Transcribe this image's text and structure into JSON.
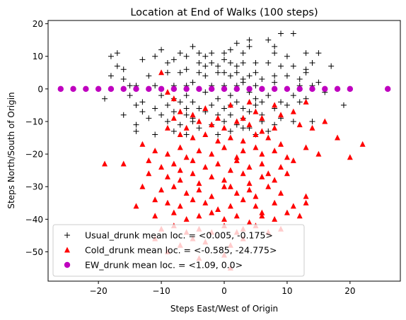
{
  "chart_data": {
    "type": "scatter",
    "title": "Location at End of Walks (100 steps)",
    "xlabel": "Steps East/West of Origin",
    "ylabel": "Steps North/South of Origin",
    "xlim": [
      -28,
      28
    ],
    "ylim": [
      -59,
      21
    ],
    "xticks": [
      -20,
      -10,
      0,
      10,
      20
    ],
    "yticks": [
      -50,
      -40,
      -30,
      -20,
      -10,
      0,
      10,
      20
    ],
    "grid": false,
    "legend_position": "lower-left",
    "series": [
      {
        "name": "Usual_drunk mean loc. = <0.005, -0.175>",
        "marker": "plus",
        "color": "#000000",
        "points": [
          [
            -18,
            10
          ],
          [
            -17,
            11
          ],
          [
            -17,
            7
          ],
          [
            -16,
            6
          ],
          [
            -13,
            9
          ],
          [
            -11,
            10
          ],
          [
            -10,
            12
          ],
          [
            -9,
            8
          ],
          [
            -8,
            9
          ],
          [
            -7,
            11
          ],
          [
            -6,
            10
          ],
          [
            -5,
            13
          ],
          [
            -4,
            11
          ],
          [
            -3,
            10
          ],
          [
            -2,
            11
          ],
          [
            0,
            11
          ],
          [
            1,
            12
          ],
          [
            2,
            14
          ],
          [
            3,
            11
          ],
          [
            4,
            13
          ],
          [
            4,
            15
          ],
          [
            7,
            15
          ],
          [
            8,
            13
          ],
          [
            9,
            17
          ],
          [
            11,
            17
          ],
          [
            8,
            11
          ],
          [
            10,
            10
          ],
          [
            13,
            11
          ],
          [
            15,
            11
          ],
          [
            17,
            7
          ],
          [
            -4,
            8
          ],
          [
            -3,
            7
          ],
          [
            -2,
            8
          ],
          [
            -1,
            7
          ],
          [
            0,
            9
          ],
          [
            1,
            8
          ],
          [
            2,
            7
          ],
          [
            3,
            8
          ],
          [
            5,
            8
          ],
          [
            7,
            8
          ],
          [
            9,
            7
          ],
          [
            11,
            7
          ],
          [
            13,
            6
          ],
          [
            14,
            8
          ],
          [
            -18,
            4
          ],
          [
            -16,
            3
          ],
          [
            -12,
            4
          ],
          [
            -9,
            5
          ],
          [
            -7,
            5
          ],
          [
            -6,
            6
          ],
          [
            -4,
            5
          ],
          [
            -3,
            4
          ],
          [
            -1,
            5
          ],
          [
            0,
            5
          ],
          [
            1,
            4
          ],
          [
            2,
            5
          ],
          [
            3,
            3
          ],
          [
            4,
            4
          ],
          [
            5,
            5
          ],
          [
            6,
            3
          ],
          [
            8,
            4
          ],
          [
            10,
            4
          ],
          [
            12,
            3
          ],
          [
            13,
            5
          ],
          [
            15,
            2
          ],
          [
            -15,
            1
          ],
          [
            -14,
            1
          ],
          [
            -11,
            1
          ],
          [
            -8,
            1
          ],
          [
            -6,
            1
          ],
          [
            -5,
            2
          ],
          [
            -2,
            1
          ],
          [
            0,
            1
          ],
          [
            2,
            1
          ],
          [
            3,
            2
          ],
          [
            5,
            1
          ],
          [
            8,
            2
          ],
          [
            12,
            1
          ],
          [
            14,
            1
          ],
          [
            -19,
            -3
          ],
          [
            -15,
            -2
          ],
          [
            -13,
            -4
          ],
          [
            -10,
            -2
          ],
          [
            -8,
            -3
          ],
          [
            -6,
            -2
          ],
          [
            -5,
            -4
          ],
          [
            -3,
            -1
          ],
          [
            -1,
            -3
          ],
          [
            1,
            -2
          ],
          [
            2,
            -4
          ],
          [
            4,
            -1
          ],
          [
            5,
            -3
          ],
          [
            7,
            -2
          ],
          [
            9,
            -4
          ],
          [
            11,
            -2
          ],
          [
            13,
            -3
          ],
          [
            16,
            -1
          ],
          [
            19,
            -5
          ],
          [
            -14,
            -5
          ],
          [
            -11,
            -6
          ],
          [
            -9,
            -5
          ],
          [
            -7,
            -4
          ],
          [
            -6,
            -6
          ],
          [
            -4,
            -6
          ],
          [
            -2,
            -5
          ],
          [
            0,
            -6
          ],
          [
            1,
            -5
          ],
          [
            3,
            -6
          ],
          [
            5,
            -5
          ],
          [
            6,
            -4
          ],
          [
            8,
            -6
          ],
          [
            10,
            -5
          ],
          [
            12,
            -4
          ],
          [
            -16,
            -8
          ],
          [
            -13,
            -7
          ],
          [
            -10,
            -8
          ],
          [
            -8,
            -7
          ],
          [
            -6,
            -8
          ],
          [
            -5,
            -9
          ],
          [
            -3,
            -7
          ],
          [
            -1,
            -8
          ],
          [
            1,
            -8
          ],
          [
            3,
            -9
          ],
          [
            4,
            -7
          ],
          [
            6,
            -8
          ],
          [
            9,
            -9
          ],
          [
            -14,
            -11
          ],
          [
            -12,
            -9
          ],
          [
            -9,
            -10
          ],
          [
            -7,
            -11
          ],
          [
            -5,
            -10
          ],
          [
            -2,
            -11
          ],
          [
            0,
            -10
          ],
          [
            2,
            -11
          ],
          [
            4,
            -12
          ],
          [
            6,
            -10
          ],
          [
            8,
            -11
          ],
          [
            11,
            -10
          ],
          [
            14,
            -10
          ],
          [
            -14,
            -13
          ],
          [
            -11,
            -14
          ],
          [
            -8,
            -13
          ],
          [
            -6,
            -14
          ],
          [
            -4,
            -12
          ],
          [
            -1,
            -14
          ],
          [
            1,
            -13
          ],
          [
            3,
            -12
          ],
          [
            5,
            -14
          ],
          [
            7,
            -13
          ]
        ]
      },
      {
        "name": "Cold_drunk mean loc. = <-0.585, -24.775>",
        "marker": "triangle",
        "color": "#ff0000",
        "points": [
          [
            -10,
            5
          ],
          [
            -9,
            -1
          ],
          [
            -8,
            -3
          ],
          [
            -7,
            -7
          ],
          [
            -5,
            -8
          ],
          [
            -3,
            -6
          ],
          [
            -1,
            -9
          ],
          [
            1,
            -5
          ],
          [
            3,
            -9
          ],
          [
            4,
            -4
          ],
          [
            5,
            -7
          ],
          [
            6,
            -9
          ],
          [
            8,
            -5
          ],
          [
            9,
            -8
          ],
          [
            11,
            -7
          ],
          [
            13,
            -4
          ],
          [
            -8,
            -9
          ],
          [
            -6,
            -12
          ],
          [
            -4,
            -10
          ],
          [
            -2,
            -11
          ],
          [
            0,
            -12
          ],
          [
            2,
            -10
          ],
          [
            4,
            -11
          ],
          [
            6,
            -13
          ],
          [
            8,
            -12
          ],
          [
            12,
            -11
          ],
          [
            14,
            -12
          ],
          [
            16,
            -10
          ],
          [
            -9,
            -12
          ],
          [
            -7,
            -14
          ],
          [
            -5,
            -15
          ],
          [
            -3,
            -14
          ],
          [
            -1,
            -16
          ],
          [
            1,
            -15
          ],
          [
            3,
            -16
          ],
          [
            5,
            -14
          ],
          [
            7,
            -15
          ],
          [
            9,
            -17
          ],
          [
            18,
            -15
          ],
          [
            -13,
            -17
          ],
          [
            -11,
            -19
          ],
          [
            -9,
            -20
          ],
          [
            -7,
            -18
          ],
          [
            -6,
            -21
          ],
          [
            -4,
            -19
          ],
          [
            -2,
            -20
          ],
          [
            0,
            -18
          ],
          [
            2,
            -21
          ],
          [
            3,
            -19
          ],
          [
            5,
            -18
          ],
          [
            6,
            -20
          ],
          [
            8,
            -19
          ],
          [
            10,
            -21
          ],
          [
            13,
            -18
          ],
          [
            15,
            -20
          ],
          [
            20,
            -21
          ],
          [
            22,
            -17
          ],
          [
            -19,
            -23
          ],
          [
            -16,
            -23
          ],
          [
            -12,
            -22
          ],
          [
            -10,
            -24
          ],
          [
            -8,
            -23
          ],
          [
            -7,
            -25
          ],
          [
            -5,
            -22
          ],
          [
            -3,
            -24
          ],
          [
            -1,
            -23
          ],
          [
            1,
            -25
          ],
          [
            2,
            -22
          ],
          [
            4,
            -24
          ],
          [
            6,
            -23
          ],
          [
            7,
            -26
          ],
          [
            9,
            -24
          ],
          [
            11,
            -22
          ],
          [
            -12,
            -26
          ],
          [
            -9,
            -27
          ],
          [
            -7,
            -28
          ],
          [
            -5,
            -26
          ],
          [
            -4,
            -29
          ],
          [
            -2,
            -27
          ],
          [
            0,
            -28
          ],
          [
            1,
            -30
          ],
          [
            3,
            -26
          ],
          [
            4,
            -29
          ],
          [
            6,
            -27
          ],
          [
            8,
            -28
          ],
          [
            10,
            -26
          ],
          [
            -13,
            -30
          ],
          [
            -10,
            -31
          ],
          [
            -8,
            -30
          ],
          [
            -6,
            -32
          ],
          [
            -4,
            -31
          ],
          [
            -2,
            -33
          ],
          [
            0,
            -30
          ],
          [
            2,
            -32
          ],
          [
            4,
            -31
          ],
          [
            5,
            -33
          ],
          [
            7,
            -30
          ],
          [
            9,
            -32
          ],
          [
            13,
            -33
          ],
          [
            -11,
            -34
          ],
          [
            -9,
            -35
          ],
          [
            -7,
            -36
          ],
          [
            -5,
            -34
          ],
          [
            -3,
            -35
          ],
          [
            -1,
            -37
          ],
          [
            1,
            -36
          ],
          [
            3,
            -34
          ],
          [
            5,
            -36
          ],
          [
            6,
            -38
          ],
          [
            8,
            -35
          ],
          [
            11,
            -36
          ],
          [
            13,
            -35
          ],
          [
            -14,
            -36
          ],
          [
            -11,
            -39
          ],
          [
            -8,
            -38
          ],
          [
            -6,
            -40
          ],
          [
            -4,
            -39
          ],
          [
            -2,
            -38
          ],
          [
            0,
            -40
          ],
          [
            2,
            -39
          ],
          [
            4,
            -41
          ],
          [
            6,
            -39
          ],
          [
            8,
            -40
          ],
          [
            10,
            -38
          ],
          [
            12,
            -39
          ],
          [
            -10,
            -43
          ],
          [
            -8,
            -42
          ],
          [
            -6,
            -44
          ],
          [
            -4,
            -43
          ],
          [
            -2,
            -44
          ],
          [
            0,
            -42
          ],
          [
            2,
            -44
          ],
          [
            3,
            -43
          ],
          [
            5,
            -42
          ],
          [
            7,
            -44
          ],
          [
            9,
            -43
          ],
          [
            -11,
            -46
          ],
          [
            -7,
            -48
          ],
          [
            -5,
            -46
          ],
          [
            -3,
            -47
          ],
          [
            1,
            -48
          ],
          [
            3,
            -46
          ],
          [
            -9,
            -50
          ],
          [
            -4,
            -52
          ],
          [
            0,
            -51
          ],
          [
            1,
            -55
          ]
        ]
      },
      {
        "name": "EW_drunk mean loc. = <1.09, 0.0>",
        "marker": "circle",
        "color": "#bf00bf",
        "points": [
          [
            -26,
            0
          ],
          [
            -24,
            0
          ],
          [
            -22,
            0
          ],
          [
            -20,
            0
          ],
          [
            -18,
            0
          ],
          [
            -16,
            0
          ],
          [
            -14,
            0
          ],
          [
            -12,
            0
          ],
          [
            -10,
            0
          ],
          [
            -8,
            0
          ],
          [
            -6,
            0
          ],
          [
            -4,
            0
          ],
          [
            -2,
            0
          ],
          [
            0,
            0
          ],
          [
            2,
            0
          ],
          [
            4,
            0
          ],
          [
            6,
            0
          ],
          [
            8,
            0
          ],
          [
            10,
            0
          ],
          [
            12,
            0
          ],
          [
            14,
            0
          ],
          [
            16,
            0
          ],
          [
            18,
            0
          ],
          [
            20,
            0
          ],
          [
            26,
            0
          ]
        ]
      }
    ]
  }
}
